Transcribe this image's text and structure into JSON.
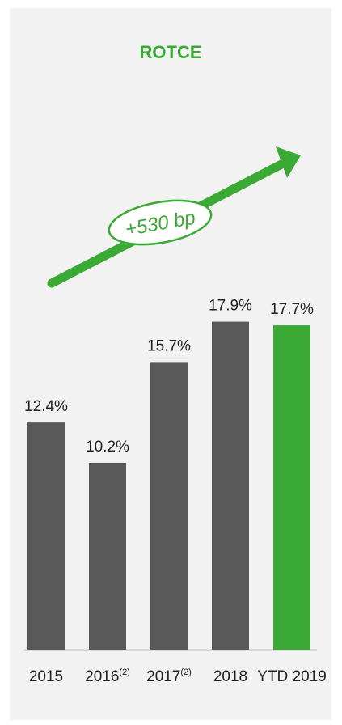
{
  "chart_data": {
    "type": "bar",
    "title": "ROTCE",
    "categories": [
      "2015",
      "2016",
      "2017",
      "2018",
      "YTD 2019"
    ],
    "category_superscripts": [
      "",
      "(2)",
      "(2)",
      "",
      ""
    ],
    "values": [
      12.4,
      10.2,
      15.7,
      17.9,
      17.7
    ],
    "value_labels": [
      "12.4%",
      "10.2%",
      "15.7%",
      "17.9%",
      "17.7%"
    ],
    "ylim": [
      0,
      20
    ],
    "grid": false,
    "highlight_index": 4,
    "annotation": "+530 bp"
  },
  "colors": {
    "bar": "#595959",
    "highlight": "#3aaa35",
    "accent": "#3aaa35",
    "panel": "#f2f2f2",
    "text": "#222222"
  }
}
